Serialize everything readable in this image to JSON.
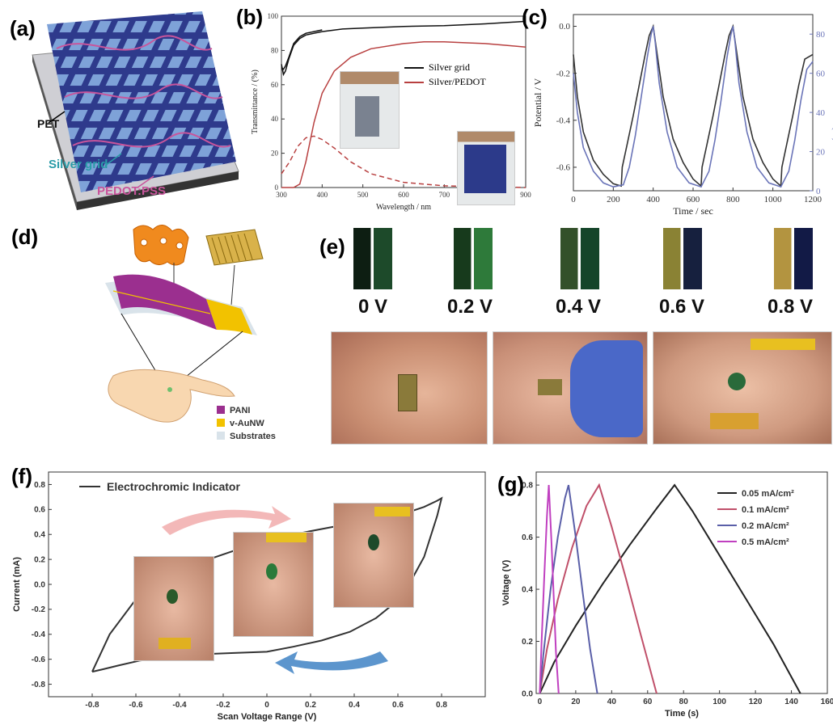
{
  "panels": {
    "a": {
      "label": "(a)",
      "layers": [
        "PET",
        "Silver grid",
        "PEDOT:PSS"
      ],
      "colors": {
        "grid": "#2e3a8c",
        "silver": "#2a9ca8",
        "pedot": "#c8559c",
        "pet": "#cfcfd4"
      }
    },
    "b": {
      "label": "(b)",
      "legend": [
        "Silver grid",
        "Silver/PEDOT"
      ]
    },
    "c": {
      "label": "(c)"
    },
    "d": {
      "label": "(d)",
      "legend": [
        "PANI",
        "v-AuNW",
        "Substrates"
      ],
      "colors": {
        "pani": "#9b2f8f",
        "auNW": "#f2c200",
        "substrate": "#d9e3ea"
      }
    },
    "e": {
      "label": "(e)",
      "voltages": [
        "0 V",
        "0.2 V",
        "0.4 V",
        "0.6 V",
        "0.8 V"
      ]
    },
    "f": {
      "label": "(f)",
      "legend": "Electrochromic Indicator"
    },
    "g": {
      "label": "(g)"
    }
  },
  "chart_data": [
    {
      "id": "b",
      "type": "line",
      "xlabel": "Wavelength / nm",
      "ylabel": "Transmittance / (%)",
      "xlim": [
        300,
        900
      ],
      "ylim": [
        0,
        100
      ],
      "xticks": [
        300,
        400,
        500,
        600,
        700,
        800,
        900
      ],
      "yticks": [
        0,
        20,
        40,
        60,
        80,
        100
      ],
      "series": [
        {
          "name": "Silver grid",
          "color": "#111111",
          "dash": false,
          "x": [
            300,
            305,
            310,
            318,
            330,
            345,
            360,
            380,
            400,
            450,
            500,
            600,
            700,
            800,
            900
          ],
          "y": [
            72,
            66,
            68,
            75,
            83,
            87,
            89,
            90,
            91,
            92.5,
            93,
            94,
            94.5,
            95.5,
            97
          ]
        },
        {
          "name": "Silver grid",
          "color": "#111111",
          "dash": false,
          "x": [
            300,
            305,
            310,
            318,
            330,
            345,
            360,
            380,
            400
          ],
          "y": [
            70,
            69,
            71,
            76,
            84,
            88,
            90,
            91,
            92
          ]
        },
        {
          "name": "Silver/PEDOT",
          "color": "#b84040",
          "dash": false,
          "x": [
            300,
            330,
            345,
            360,
            380,
            400,
            430,
            470,
            520,
            600,
            650,
            700,
            750,
            800,
            850,
            900
          ],
          "y": [
            0,
            0,
            2,
            15,
            38,
            55,
            68,
            76,
            81,
            84,
            85,
            85,
            84.5,
            84,
            83,
            82
          ]
        },
        {
          "name": "",
          "color": "#b84040",
          "dash": true,
          "x": [
            300,
            320,
            340,
            360,
            380,
            400,
            430,
            470,
            520,
            600,
            700,
            800,
            900
          ],
          "y": [
            8,
            15,
            24,
            29,
            30,
            28,
            23,
            15,
            8,
            3,
            1,
            0.5,
            0
          ]
        }
      ]
    },
    {
      "id": "c",
      "type": "line",
      "xlabel": "Time / sec",
      "ylabel": "Potential / V",
      "y2label": "Transmittance / (%)",
      "xlim": [
        0,
        1200
      ],
      "ylim": [
        -0.7,
        0.05
      ],
      "y2lim": [
        0,
        90
      ],
      "xticks": [
        0,
        200,
        400,
        600,
        800,
        1000,
        1200
      ],
      "yticks": [
        0.0,
        -0.2,
        -0.4,
        -0.6
      ],
      "y2ticks": [
        0,
        20,
        40,
        60,
        80
      ],
      "series": [
        {
          "name": "Potential",
          "axis": "left",
          "color": "#333333",
          "x": [
            0,
            20,
            50,
            100,
            150,
            200,
            240,
            245,
            270,
            300,
            330,
            360,
            380,
            400,
            420,
            450,
            500,
            550,
            600,
            640,
            645,
            670,
            700,
            730,
            760,
            780,
            800,
            820,
            850,
            900,
            950,
            1000,
            1040,
            1045,
            1070,
            1100,
            1130,
            1160,
            1200
          ],
          "y": [
            -0.12,
            -0.3,
            -0.45,
            -0.57,
            -0.63,
            -0.67,
            -0.68,
            -0.6,
            -0.5,
            -0.38,
            -0.25,
            -0.12,
            -0.04,
            0.0,
            -0.12,
            -0.3,
            -0.48,
            -0.58,
            -0.65,
            -0.68,
            -0.6,
            -0.5,
            -0.38,
            -0.25,
            -0.12,
            -0.04,
            0.0,
            -0.12,
            -0.3,
            -0.48,
            -0.58,
            -0.65,
            -0.68,
            -0.6,
            -0.5,
            -0.38,
            -0.25,
            -0.14,
            -0.12
          ]
        },
        {
          "name": "Transmittance",
          "axis": "right",
          "color": "#6a74b8",
          "x": [
            0,
            20,
            50,
            100,
            150,
            200,
            250,
            280,
            310,
            340,
            370,
            390,
            400,
            410,
            430,
            470,
            520,
            580,
            640,
            680,
            710,
            740,
            770,
            790,
            800,
            810,
            830,
            870,
            920,
            980,
            1040,
            1080,
            1110,
            1140,
            1170,
            1200
          ],
          "y": [
            60,
            40,
            22,
            10,
            4,
            2,
            3,
            12,
            28,
            48,
            68,
            80,
            84,
            76,
            55,
            30,
            12,
            4,
            2,
            10,
            26,
            46,
            68,
            80,
            84,
            76,
            55,
            30,
            12,
            4,
            2,
            10,
            26,
            46,
            62,
            66
          ]
        }
      ]
    },
    {
      "id": "f",
      "type": "line",
      "xlabel": "Scan Voltage Range (V)",
      "ylabel": "Current (mA)",
      "xlim": [
        -1.0,
        1.0
      ],
      "ylim": [
        -0.9,
        0.9
      ],
      "xticks": [
        -0.8,
        -0.6,
        -0.4,
        -0.2,
        0.0,
        0.2,
        0.4,
        0.6,
        0.8
      ],
      "yticks": [
        0.8,
        0.6,
        0.4,
        0.2,
        0.0,
        -0.2,
        -0.4,
        -0.6,
        -0.8
      ],
      "series": [
        {
          "name": "Electrochromic Indicator",
          "color": "#333333",
          "x": [
            -0.8,
            -0.72,
            -0.6,
            -0.45,
            -0.3,
            -0.15,
            0.0,
            0.15,
            0.3,
            0.45,
            0.6,
            0.72,
            0.78,
            0.8,
            0.78,
            0.72,
            0.62,
            0.5,
            0.38,
            0.25,
            0.12,
            0.0,
            -0.15,
            -0.3,
            -0.45,
            -0.58,
            -0.68,
            -0.75,
            -0.8
          ],
          "y": [
            -0.7,
            -0.4,
            -0.12,
            0.04,
            0.18,
            0.27,
            0.35,
            0.41,
            0.46,
            0.5,
            0.55,
            0.62,
            0.67,
            0.69,
            0.55,
            0.22,
            -0.1,
            -0.27,
            -0.38,
            -0.45,
            -0.5,
            -0.54,
            -0.55,
            -0.56,
            -0.58,
            -0.61,
            -0.65,
            -0.68,
            -0.7
          ]
        }
      ]
    },
    {
      "id": "g",
      "type": "line",
      "xlabel": "Time (s)",
      "ylabel": "Voltage (V)",
      "xlim": [
        -2,
        160
      ],
      "ylim": [
        0,
        0.85
      ],
      "xticks": [
        0,
        20,
        40,
        60,
        80,
        100,
        120,
        140,
        160
      ],
      "yticks": [
        0.0,
        0.2,
        0.4,
        0.6,
        0.8
      ],
      "series": [
        {
          "name": "0.05 mA/cm²",
          "color": "#222222",
          "x": [
            0,
            8,
            20,
            35,
            50,
            65,
            75,
            85,
            100,
            115,
            130,
            145
          ],
          "y": [
            0,
            0.12,
            0.26,
            0.42,
            0.57,
            0.71,
            0.8,
            0.7,
            0.53,
            0.36,
            0.19,
            0
          ]
        },
        {
          "name": "0.1 mA/cm²",
          "color": "#c0506a",
          "x": [
            0,
            4,
            10,
            18,
            26,
            33,
            40,
            48,
            56,
            65
          ],
          "y": [
            0,
            0.17,
            0.36,
            0.56,
            0.72,
            0.8,
            0.64,
            0.44,
            0.23,
            0
          ]
        },
        {
          "name": "0.2 mA/cm²",
          "color": "#5a5fa8",
          "x": [
            0,
            2,
            6,
            10,
            14,
            16,
            20,
            24,
            28,
            32
          ],
          "y": [
            0,
            0.15,
            0.4,
            0.6,
            0.75,
            0.8,
            0.6,
            0.38,
            0.17,
            0
          ]
        },
        {
          "name": "0.5 mA/cm²",
          "color": "#c040c0",
          "x": [
            0,
            1,
            2.5,
            4,
            5,
            6.5,
            8,
            9,
            10.5
          ],
          "y": [
            0,
            0.2,
            0.45,
            0.68,
            0.8,
            0.58,
            0.33,
            0.16,
            0
          ]
        }
      ]
    }
  ]
}
